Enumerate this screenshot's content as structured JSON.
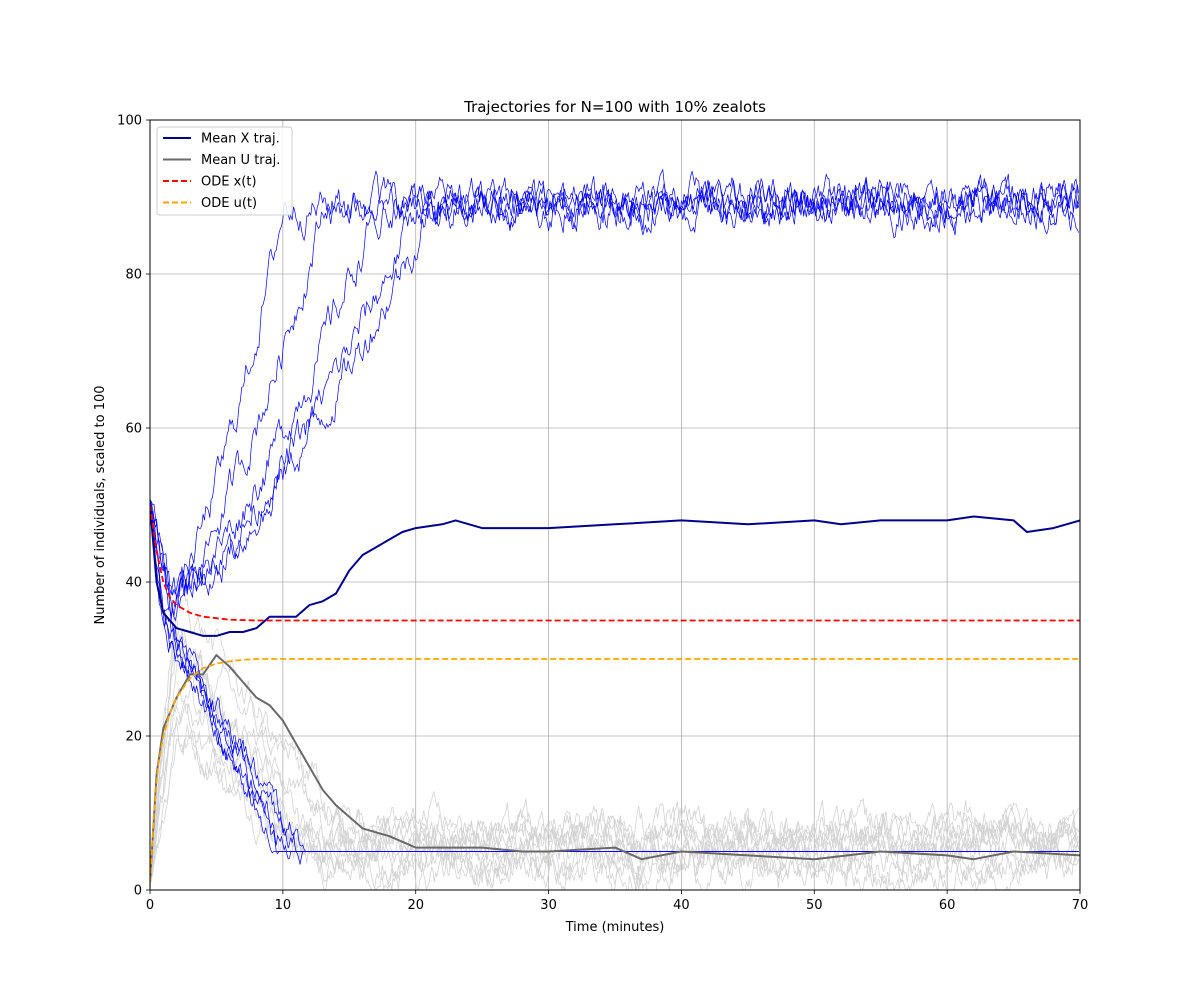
{
  "chart_data": {
    "type": "line",
    "title": "Trajectories for N=100 with 10% zealots",
    "xlabel": "Time (minutes)",
    "ylabel": "Number of individuals, scaled to 100",
    "xlim": [
      0,
      70
    ],
    "ylim": [
      0,
      100
    ],
    "xticks": [
      0,
      10,
      20,
      30,
      40,
      50,
      60,
      70
    ],
    "yticks": [
      0,
      20,
      40,
      60,
      80,
      100
    ],
    "grid": true,
    "legend_position": "upper-left",
    "legend": [
      {
        "label": "Mean X traj.",
        "color": "#00008b",
        "style": "solid"
      },
      {
        "label": "Mean U traj.",
        "color": "#696969",
        "style": "solid"
      },
      {
        "label": "ODE x(t)",
        "color": "#ff0000",
        "style": "dashed"
      },
      {
        "label": "ODE u(t)",
        "color": "#ffa500",
        "style": "dashed"
      }
    ],
    "series": [
      {
        "name": "Mean X traj.",
        "color": "#00008b",
        "style": "solid",
        "x": [
          0,
          0.5,
          1,
          2,
          3,
          4,
          5,
          6,
          7,
          8,
          9,
          10,
          11,
          12,
          13,
          14,
          15,
          16,
          17,
          18,
          19,
          20,
          22,
          23,
          25,
          30,
          35,
          40,
          45,
          50,
          52,
          55,
          60,
          62,
          65,
          66,
          68,
          70
        ],
        "y": [
          50,
          40,
          36,
          34,
          33.5,
          33,
          33,
          33.5,
          33.5,
          34,
          35.5,
          35.5,
          35.5,
          37,
          37.5,
          38.5,
          41.5,
          43.5,
          44.5,
          45.5,
          46.5,
          47,
          47.5,
          48,
          47,
          47,
          47.5,
          48,
          47.5,
          48,
          47.5,
          48,
          48,
          48.5,
          48,
          46.5,
          47,
          48
        ]
      },
      {
        "name": "Mean U traj.",
        "color": "#696969",
        "style": "solid",
        "x": [
          0,
          0.5,
          1,
          2,
          3,
          4,
          5,
          6,
          7,
          8,
          9,
          10,
          11,
          12,
          13,
          14,
          15,
          16,
          17,
          18,
          20,
          22,
          25,
          28,
          30,
          35,
          37,
          40,
          45,
          50,
          55,
          60,
          62,
          65,
          70
        ],
        "y": [
          1,
          15,
          21,
          25,
          28,
          28,
          30.5,
          29,
          27,
          25,
          24,
          22,
          19,
          16,
          13,
          11,
          9.5,
          8,
          7.5,
          7,
          5.5,
          5.5,
          5.5,
          5,
          5,
          5.5,
          4,
          5,
          4.5,
          4,
          5,
          4.5,
          4,
          5,
          4.5
        ]
      },
      {
        "name": "ODE x(t)",
        "color": "#ff0000",
        "style": "dashed",
        "x": [
          0,
          0.5,
          1,
          1.5,
          2,
          3,
          4,
          5,
          6,
          8,
          10,
          15,
          20,
          30,
          40,
          50,
          60,
          70
        ],
        "y": [
          50,
          44,
          40,
          38,
          37,
          36,
          35.5,
          35.3,
          35.1,
          35,
          35,
          35,
          35,
          35,
          35,
          35,
          35,
          35
        ]
      },
      {
        "name": "ODE u(t)",
        "color": "#ffa500",
        "style": "dashed",
        "x": [
          0,
          0.3,
          0.6,
          1,
          1.5,
          2,
          3,
          4,
          5,
          6,
          7,
          8,
          10,
          15,
          20,
          30,
          40,
          50,
          60,
          70
        ],
        "y": [
          1,
          10,
          16,
          20,
          23,
          25,
          27.5,
          28.8,
          29.4,
          29.7,
          29.9,
          30,
          30,
          30,
          30,
          30,
          30,
          30,
          30,
          30
        ]
      }
    ],
    "sample_x_trajectories": {
      "color": "#0000ff",
      "count": 10,
      "start": 50,
      "high_plateau": [
        83,
        95
      ],
      "low_plateau": 5
    },
    "sample_u_trajectories": {
      "color": "#d3d3d3",
      "count": 10,
      "peak_range": [
        20,
        40
      ],
      "low_plateau": [
        0,
        16
      ]
    }
  }
}
